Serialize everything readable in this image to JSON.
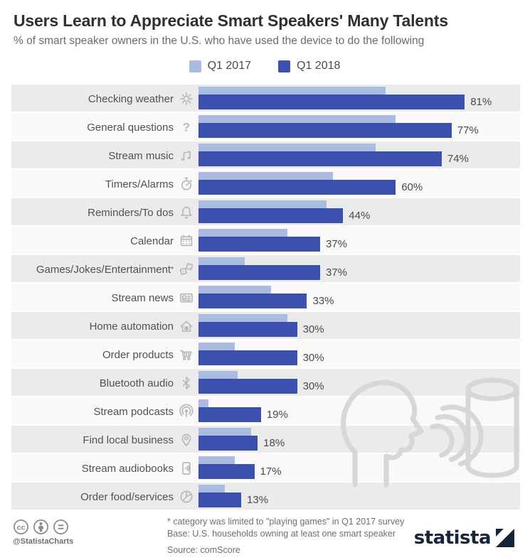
{
  "header": {
    "title": "Users Learn to Appreciate Smart Speakers' Many Talents",
    "subtitle": "% of smart speaker owners in the U.S. who have used the device to do the following"
  },
  "legend": [
    {
      "label": "Q1 2017",
      "color": "#a9bcdf"
    },
    {
      "label": "Q1 2018",
      "color": "#3c50ae"
    }
  ],
  "chart_data": {
    "type": "bar",
    "orientation": "horizontal",
    "title": "Users Learn to Appreciate Smart Speakers' Many Talents",
    "xlabel": "% of smart speaker owners",
    "xlim": [
      0,
      100
    ],
    "value_suffix": "%",
    "legend_position": "top-center",
    "grid": false,
    "categories": [
      "Checking weather",
      "General questions",
      "Stream music",
      "Timers/Alarms",
      "Reminders/To dos",
      "Calendar",
      "Games/Jokes/Entertainment*",
      "Stream news",
      "Home automation",
      "Order products",
      "Bluetooth audio",
      "Stream podcasts",
      "Find local business",
      "Stream audiobooks",
      "Order food/services"
    ],
    "category_icons": [
      "sun-icon",
      "question-mark-icon",
      "music-notes-icon",
      "stopwatch-icon",
      "bell-icon",
      "calendar-icon",
      "dice-icon",
      "newspaper-icon",
      "house-icon",
      "shopping-cart-icon",
      "bluetooth-icon",
      "podcast-icon",
      "map-pin-icon",
      "audiobook-icon",
      "food-plate-icon"
    ],
    "series": [
      {
        "name": "Q1 2017",
        "color": "#a9bcdf",
        "values": [
          57,
          60,
          54,
          41,
          39,
          27,
          14,
          22,
          27,
          11,
          12,
          3,
          16,
          11,
          8
        ],
        "labels_shown": false
      },
      {
        "name": "Q1 2018",
        "color": "#3c50ae",
        "values": [
          81,
          77,
          74,
          60,
          44,
          37,
          37,
          33,
          30,
          30,
          30,
          19,
          18,
          17,
          13
        ],
        "labels_shown": true
      }
    ]
  },
  "footer": {
    "footnote": "* category was limited to \"playing games\" in Q1 2017 survey",
    "base": "Base: U.S. households owning at least one smart speaker",
    "source": "Source: comScore",
    "credit": "@StatistaCharts",
    "brand": "statista"
  },
  "colors": {
    "bar_2017": "#a9bcdf",
    "bar_2018": "#3c50ae",
    "row_band": "#ebebeb",
    "row_alt": "#f9f9f9",
    "icon_gray": "#b9b9b9",
    "illustration_gray": "#d7d7d7",
    "brand_navy": "#16253c"
  }
}
